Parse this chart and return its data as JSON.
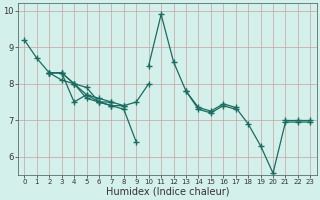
{
  "xlabel": "Humidex (Indice chaleur)",
  "xlim": [
    -0.5,
    23.5
  ],
  "ylim": [
    5.5,
    10.2
  ],
  "bg_color": "#d4f0ea",
  "plot_bg_color": "#d4f0ea",
  "grid_color": "#c9a0a0",
  "line_color": "#1a6b60",
  "series": [
    {
      "segments": [
        {
          "x": [
            0,
            1,
            2,
            3,
            4,
            5,
            6,
            7
          ],
          "y": [
            9.2,
            8.7,
            8.3,
            8.3,
            7.5,
            7.7,
            7.5,
            7.5
          ]
        },
        {
          "x": [
            10,
            11,
            12,
            13,
            14,
            15,
            16,
            17
          ],
          "y": [
            8.5,
            9.9,
            8.6,
            7.8,
            7.3,
            7.2,
            7.4,
            7.3
          ]
        },
        {
          "x": [
            21,
            22,
            23
          ],
          "y": [
            7.0,
            7.0,
            7.0
          ]
        }
      ]
    },
    {
      "segments": [
        {
          "x": [
            2,
            3,
            4,
            5,
            6,
            7,
            8,
            9
          ],
          "y": [
            8.3,
            8.3,
            8.0,
            7.9,
            7.5,
            7.4,
            7.3,
            6.4
          ]
        }
      ]
    },
    {
      "segments": [
        {
          "x": [
            2,
            3,
            4,
            5,
            6,
            7,
            8,
            9,
            10
          ],
          "y": [
            8.3,
            8.3,
            8.0,
            7.7,
            7.6,
            7.5,
            7.4,
            7.5,
            8.0
          ]
        }
      ]
    },
    {
      "segments": [
        {
          "x": [
            2,
            3,
            4,
            5,
            6,
            7,
            8
          ],
          "y": [
            8.3,
            8.1,
            8.0,
            7.6,
            7.5,
            7.4,
            7.4
          ]
        }
      ]
    },
    {
      "segments": [
        {
          "x": [
            13,
            14,
            15,
            16,
            17,
            18,
            19,
            20,
            21,
            22,
            23
          ],
          "y": [
            7.8,
            7.35,
            7.25,
            7.45,
            7.35,
            6.9,
            6.3,
            5.55,
            6.95,
            6.95,
            6.95
          ]
        }
      ]
    }
  ]
}
